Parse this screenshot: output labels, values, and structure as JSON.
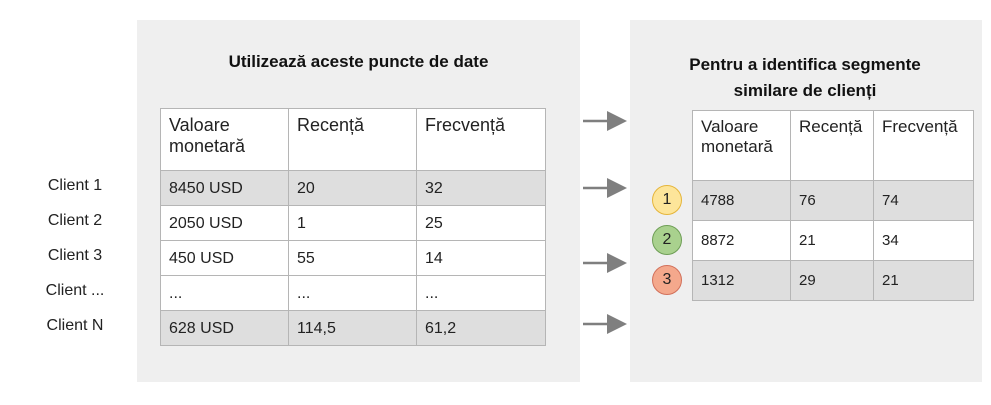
{
  "left": {
    "title": "Utilizează aceste puncte de date",
    "row_labels": [
      "Client 1",
      "Client 2",
      "Client 3",
      "Client ...",
      "Client N"
    ],
    "table": {
      "header": [
        "Valoare monetară",
        "Recență",
        "Frecvență"
      ],
      "rows": [
        [
          "8450 USD",
          "20",
          "32"
        ],
        [
          "2050 USD",
          "1",
          "25"
        ],
        [
          "450 USD",
          "55",
          "14"
        ],
        [
          "...",
          "...",
          "..."
        ],
        [
          "628 USD",
          "114,5",
          "61,2"
        ]
      ]
    }
  },
  "right": {
    "title": "Pentru a identifica segmente similare de clienți",
    "segments": [
      "1",
      "2",
      "3"
    ],
    "table": {
      "header": [
        "Valoare monetară",
        "Recență",
        "Frecvență"
      ],
      "rows": [
        [
          "4788",
          "76",
          "74"
        ],
        [
          "8872",
          "21",
          "34"
        ],
        [
          "1312",
          "29",
          "21"
        ]
      ]
    }
  }
}
